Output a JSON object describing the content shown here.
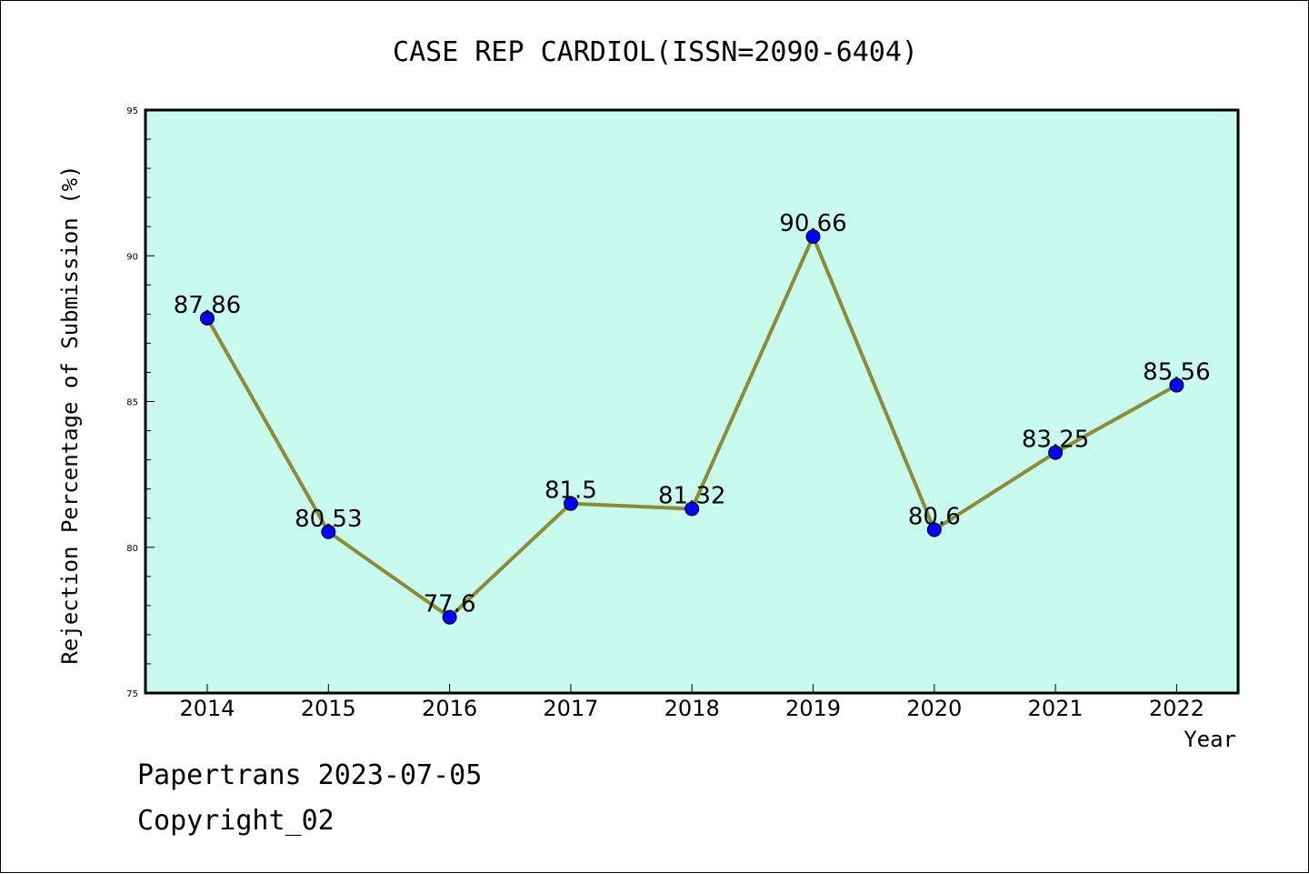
{
  "chart_data": {
    "type": "line",
    "title": "CASE REP CARDIOL(ISSN=2090-6404)",
    "xlabel": "Year",
    "ylabel": "Rejection Percentage of Submission (%)",
    "categories": [
      "2014",
      "2015",
      "2016",
      "2017",
      "2018",
      "2019",
      "2020",
      "2021",
      "2022"
    ],
    "values": [
      87.86,
      80.53,
      77.6,
      81.5,
      81.32,
      90.66,
      80.6,
      83.25,
      85.56
    ],
    "data_labels": [
      "87.86",
      "80.53",
      "77.6",
      "81.5",
      "81.32",
      "90.66",
      "80.6",
      "83.25",
      "85.56"
    ],
    "ylim": [
      75,
      95
    ],
    "yticks": [
      "75",
      "80",
      "85",
      "90",
      "95"
    ],
    "grid": false,
    "colors": {
      "plot_background": "#c8fbee",
      "line": "#8b8b3a",
      "marker": "#0000ff"
    }
  },
  "footer": {
    "source": "Papertrans 2023-07-05",
    "copyright": "Copyright_02"
  }
}
